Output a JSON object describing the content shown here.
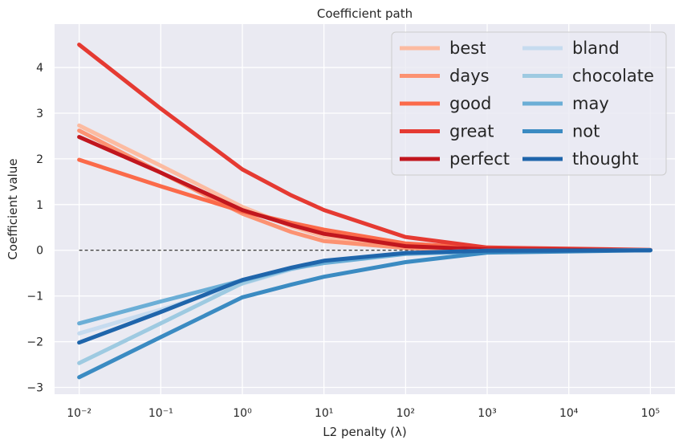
{
  "chart_data": {
    "type": "line",
    "title": "Coefficient path",
    "xlabel": "L2 penalty (λ)",
    "ylabel": "Coefficient value",
    "xscale": "log",
    "xlim": [
      0.005,
      200000
    ],
    "ylim": [
      -3.15,
      4.95
    ],
    "x": [
      0.01,
      0.1,
      1,
      4,
      10,
      100,
      1000,
      100000
    ],
    "x_tick_labels": [
      "10⁻²",
      "10⁻¹",
      "10⁰",
      "10¹",
      "10²",
      "10³",
      "10⁴",
      "10⁵"
    ],
    "x_tick_values": [
      0.01,
      0.1,
      1,
      10,
      100,
      1000,
      10000,
      100000
    ],
    "y_ticks": [
      -3,
      -2,
      -1,
      0,
      1,
      2,
      3,
      4
    ],
    "y_tick_labels": [
      "−3",
      "−2",
      "−1",
      "0",
      "1",
      "2",
      "3",
      "4"
    ],
    "grid": true,
    "background": "#eaeaf2",
    "zero_line": {
      "y": 0,
      "style": "dashed",
      "color": "#000000"
    },
    "legend": {
      "placement": "top-right",
      "columns": 2
    },
    "series": [
      {
        "name": "best",
        "color": "#fcbba1",
        "values": [
          2.73,
          1.85,
          0.95,
          0.52,
          0.3,
          0.05,
          0.01,
          0.0
        ]
      },
      {
        "name": "days",
        "color": "#fc9272",
        "values": [
          2.62,
          1.7,
          0.8,
          0.4,
          0.2,
          0.05,
          0.01,
          0.0
        ]
      },
      {
        "name": "good",
        "color": "#fb6a4a",
        "values": [
          1.98,
          1.4,
          0.85,
          0.6,
          0.45,
          0.15,
          0.04,
          0.0
        ]
      },
      {
        "name": "great",
        "color": "#e53a32",
        "values": [
          4.5,
          3.1,
          1.77,
          1.2,
          0.88,
          0.29,
          0.06,
          0.01
        ]
      },
      {
        "name": "perfect",
        "color": "#c1161e",
        "values": [
          2.48,
          1.7,
          0.88,
          0.55,
          0.36,
          0.09,
          0.02,
          0.0
        ]
      },
      {
        "name": "bland",
        "color": "#c6dbef",
        "values": [
          -1.82,
          -1.3,
          -0.73,
          -0.42,
          -0.26,
          -0.06,
          -0.01,
          0.0
        ]
      },
      {
        "name": "chocolate",
        "color": "#9ecae1",
        "values": [
          -2.47,
          -1.6,
          -0.72,
          -0.4,
          -0.25,
          -0.07,
          -0.02,
          0.0
        ]
      },
      {
        "name": "may",
        "color": "#6baed6",
        "values": [
          -1.6,
          -1.12,
          -0.66,
          -0.4,
          -0.28,
          -0.08,
          -0.02,
          0.0
        ]
      },
      {
        "name": "not",
        "color": "#3b8bc2",
        "values": [
          -2.78,
          -1.9,
          -1.03,
          -0.75,
          -0.58,
          -0.26,
          -0.05,
          0.0
        ]
      },
      {
        "name": "thought",
        "color": "#1f65ab",
        "values": [
          -2.02,
          -1.35,
          -0.65,
          -0.38,
          -0.23,
          -0.06,
          -0.01,
          0.0
        ]
      }
    ]
  }
}
